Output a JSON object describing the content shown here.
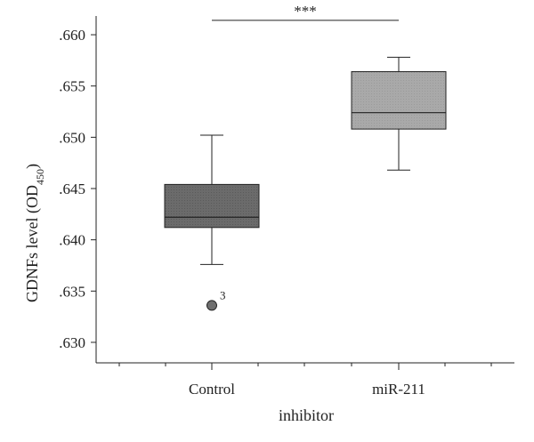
{
  "chart_data": {
    "type": "boxplot",
    "xlabel": "inhibitor",
    "ylabel": "GDNFs level (OD",
    "ylabel_subscript": "450",
    "ylabel_close": ")",
    "ylim": [
      0.628,
      0.662
    ],
    "yticks": [
      {
        "value": 0.63,
        "label": ".630"
      },
      {
        "value": 0.635,
        "label": ".635"
      },
      {
        "value": 0.64,
        "label": ".640"
      },
      {
        "value": 0.645,
        "label": ".645"
      },
      {
        "value": 0.65,
        "label": ".650"
      },
      {
        "value": 0.655,
        "label": ".655"
      },
      {
        "value": 0.66,
        "label": ".660"
      }
    ],
    "categories": [
      "Control",
      "miR-211"
    ],
    "boxes": [
      {
        "category": "Control",
        "whisker_low": 0.6376,
        "q1": 0.6412,
        "median": 0.6422,
        "q3": 0.6454,
        "whisker_high": 0.6502,
        "color": "#6b6b6b",
        "outliers": [
          {
            "value": 0.6336,
            "label": "3"
          }
        ]
      },
      {
        "category": "miR-211",
        "whisker_low": 0.6468,
        "q1": 0.6508,
        "median": 0.6524,
        "q3": 0.6564,
        "whisker_high": 0.6578,
        "color": "#a9a9a9",
        "outliers": []
      }
    ],
    "significance": {
      "from": "Control",
      "to": "miR-211",
      "y": 0.6614,
      "label": "***"
    },
    "grid": false,
    "legend": "none"
  }
}
